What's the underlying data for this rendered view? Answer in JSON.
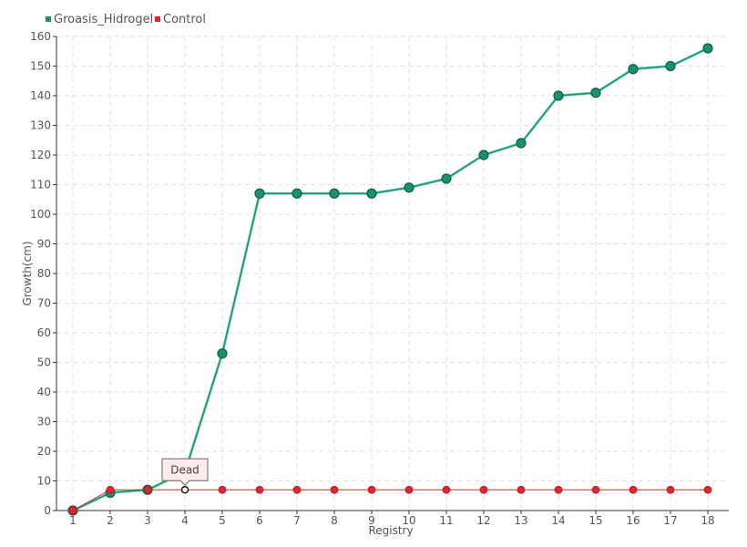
{
  "chart_data": {
    "type": "line",
    "xlabel": "Registry",
    "ylabel": "Growth(cm)",
    "categories": [
      "1",
      "2",
      "3",
      "4",
      "5",
      "6",
      "7",
      "8",
      "9",
      "10",
      "11",
      "12",
      "13",
      "14",
      "15",
      "16",
      "17",
      "18"
    ],
    "ylim": [
      0,
      160
    ],
    "yticks": [
      0,
      10,
      20,
      30,
      40,
      50,
      60,
      70,
      80,
      90,
      100,
      110,
      120,
      130,
      140,
      150,
      160
    ],
    "grid": true,
    "legend_position": "top-left",
    "series": [
      {
        "name": "Groasis_Hidrogel",
        "color": "#1a9070",
        "values": [
          0,
          6,
          7,
          13,
          53,
          107,
          107,
          107,
          107,
          109,
          112,
          120,
          124,
          140,
          141,
          149,
          150,
          156
        ]
      },
      {
        "name": "Control",
        "color": "#e8232f",
        "values": [
          0,
          7,
          7,
          7,
          7,
          7,
          7,
          7,
          7,
          7,
          7,
          7,
          7,
          7,
          7,
          7,
          7,
          7
        ]
      }
    ],
    "annotations": [
      {
        "series": "Control",
        "category": "4",
        "text": "Dead"
      }
    ]
  }
}
